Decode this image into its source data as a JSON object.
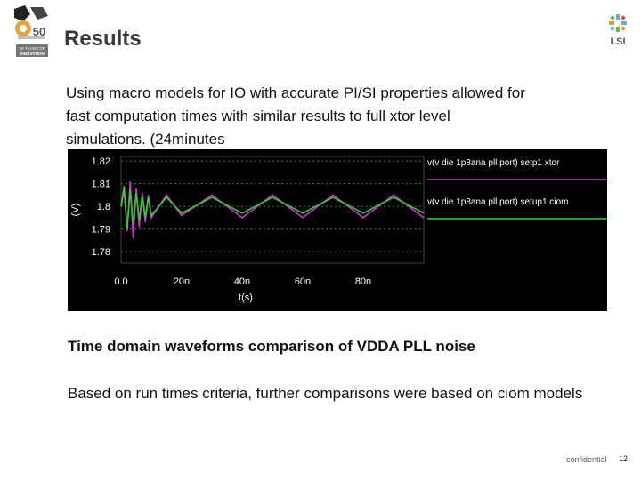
{
  "slide": {
    "title": "Results",
    "paragraph": "Using macro models for IO with accurate PI/SI properties allowed for fast computation times with similar results to full xtor level simulations.  (24minutes",
    "caption": "Time domain waveforms comparison of VDDA PLL noise",
    "paragraph2": "Based on run times criteria, further comparisons were based on ciom models",
    "footer_label": "confidential",
    "page_number": "12"
  },
  "logo": {
    "badge_number": "50",
    "badge_line1": "50 YEARS OF",
    "badge_line2": "INNOVATION",
    "brand": "LSI"
  },
  "chart_data": {
    "type": "line",
    "ylabel": "(V)",
    "xlabel": "t(s)",
    "xlim": [
      0,
      100
    ],
    "ylim": [
      1.775,
      1.822
    ],
    "x_ticks": [
      0,
      20,
      40,
      60,
      80
    ],
    "x_tick_labels": [
      "0.0",
      "20n",
      "40n",
      "60n",
      "80n"
    ],
    "y_ticks": [
      1.78,
      1.79,
      1.8,
      1.81,
      1.82
    ],
    "y_tick_labels": [
      "1.78",
      "1.79",
      "1.8",
      "1.81",
      "1.82"
    ],
    "grid": true,
    "background": "#000000",
    "series": [
      {
        "name": "v(v die 1p8ana pll port) setp1 xtor",
        "color": "#cc33cc",
        "x": [
          0,
          1,
          2,
          3,
          4,
          5,
          6,
          7,
          8,
          9,
          10,
          15,
          20,
          30,
          40,
          50,
          60,
          70,
          80,
          90,
          100
        ],
        "y": [
          1.8,
          1.807,
          1.789,
          1.811,
          1.786,
          1.808,
          1.791,
          1.806,
          1.793,
          1.805,
          1.795,
          1.805,
          1.796,
          1.805,
          1.795,
          1.805,
          1.795,
          1.805,
          1.795,
          1.805,
          1.795
        ]
      },
      {
        "name": "v(v die 1p8ana pll port) setup1 ciom",
        "color": "#33cc33",
        "x": [
          0,
          1,
          2,
          3,
          4,
          5,
          6,
          7,
          8,
          9,
          10,
          15,
          20,
          30,
          40,
          50,
          60,
          70,
          80,
          90,
          100
        ],
        "y": [
          1.8,
          1.809,
          1.79,
          1.807,
          1.792,
          1.806,
          1.794,
          1.805,
          1.795,
          1.804,
          1.796,
          1.804,
          1.797,
          1.804,
          1.797,
          1.804,
          1.797,
          1.804,
          1.797,
          1.804,
          1.797
        ]
      }
    ]
  }
}
